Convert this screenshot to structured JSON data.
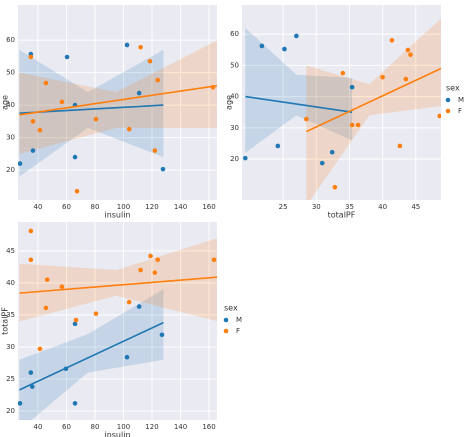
{
  "chart_data": [
    {
      "type": "scatter",
      "xlabel": "insulin",
      "ylabel": "age",
      "xlim": [
        26,
        165.6
      ],
      "ylim": [
        10.8,
        70.8
      ],
      "xticks": [
        40,
        60,
        80,
        100,
        120,
        140,
        160
      ],
      "yticks": [
        20,
        30,
        40,
        50,
        60
      ],
      "grid": true,
      "legend": false,
      "series": [
        {
          "name": "M",
          "color": "#1f77b4",
          "x": [
            27.4,
            35,
            36.5,
            60.4,
            66,
            66,
            102.5,
            111,
            127.7
          ],
          "values": [
            22,
            55.7,
            26,
            54.8,
            40,
            24,
            58.5,
            43.7,
            20.3
          ],
          "fit": {
            "x": [
              27,
              128
            ],
            "values": [
              37.5,
              40
            ]
          },
          "ci": {
            "x": [
              27,
              75,
              128
            ],
            "lower": [
              18,
              33,
              24
            ],
            "upper": [
              57,
              44,
              57
            ]
          }
        },
        {
          "name": "F",
          "color": "#ff7f0e",
          "x": [
            35,
            36.5,
            41.4,
            45.6,
            56.8,
            67.4,
            80.7,
            104,
            112,
            118.6,
            122,
            124,
            162.8
          ],
          "values": [
            54.8,
            35,
            32.3,
            46.8,
            41,
            13.5,
            35.7,
            32.6,
            57.8,
            53.5,
            26,
            47.7,
            45.5
          ],
          "fit": {
            "x": [
              27,
              166
            ],
            "values": [
              37,
              46
            ]
          },
          "ci": {
            "x": [
              27,
              95,
              166
            ],
            "lower": [
              25,
              33,
              33
            ],
            "upper": [
              50,
              44,
              60
            ]
          }
        }
      ]
    },
    {
      "type": "scatter",
      "xlabel": "totalPF",
      "ylabel": "age",
      "xlim": [
        18.8,
        48.8
      ],
      "ylim": [
        6.9,
        69.3
      ],
      "xticks": [
        25,
        30,
        35,
        40,
        45
      ],
      "yticks": [
        20,
        30,
        40,
        50,
        60
      ],
      "grid": true,
      "legend": true,
      "legend_title": "sex",
      "series": [
        {
          "name": "M",
          "color": "#1f77b4",
          "x": [
            19.3,
            21.8,
            25.2,
            27,
            24.2,
            30.9,
            32.4,
            35.4
          ],
          "values": [
            20.3,
            56.2,
            55.2,
            59.4,
            24.2,
            18.7,
            22.2,
            43
          ],
          "fit": {
            "x": [
              19.3,
              35.4
            ],
            "values": [
              40,
              35
            ]
          },
          "ci": {
            "x": [
              19.3,
              27,
              35.4
            ],
            "lower": [
              22,
              34,
              26
            ],
            "upper": [
              62,
              47,
              46
            ]
          }
        },
        {
          "name": "F",
          "color": "#ff7f0e",
          "x": [
            28.5,
            32.8,
            34,
            35.4,
            36.3,
            40,
            41.4,
            42.6,
            43.5,
            43.8,
            44.2,
            48.6
          ],
          "values": [
            32.8,
            11,
            47.5,
            30.9,
            30.9,
            46.2,
            58,
            24.2,
            45.6,
            54.9,
            53.4,
            33.8
          ],
          "fit": {
            "x": [
              28.5,
              48.8
            ],
            "values": [
              28.8,
              49
            ]
          },
          "ci": {
            "x": [
              28.5,
              38,
              48.8
            ],
            "lower": [
              5,
              34,
              37
            ],
            "upper": [
              50,
              44,
              65
            ]
          }
        }
      ]
    },
    {
      "type": "scatter",
      "xlabel": "insulin",
      "ylabel": "totalPF",
      "xlim": [
        26,
        165.6
      ],
      "ylim": [
        18.6,
        49.5
      ],
      "xticks": [
        40,
        60,
        80,
        100,
        120,
        140,
        160
      ],
      "yticks": [
        20,
        25,
        30,
        35,
        40,
        45
      ],
      "grid": true,
      "legend": true,
      "legend_title": "sex",
      "series": [
        {
          "name": "M",
          "color": "#1f77b4",
          "x": [
            27.4,
            35,
            36,
            59.6,
            66,
            66,
            102.5,
            111,
            127
          ],
          "values": [
            21.2,
            26,
            23.8,
            26.6,
            21.2,
            33.6,
            28.4,
            36.3,
            31.9
          ],
          "fit": {
            "x": [
              27,
              128
            ],
            "values": [
              23.3,
              33.8
            ]
          },
          "ci": {
            "x": [
              27,
              75,
              128
            ],
            "lower": [
              17,
              26,
              28
            ],
            "upper": [
              28,
              32,
              39
            ]
          }
        },
        {
          "name": "F",
          "color": "#ff7f0e",
          "x": [
            35,
            35,
            41.4,
            45.6,
            46.5,
            56.8,
            66.7,
            80.7,
            104,
            112,
            119,
            122,
            124,
            163.5
          ],
          "values": [
            48.1,
            43.6,
            29.7,
            36.1,
            40.5,
            39.4,
            34.2,
            35.2,
            37,
            42,
            44.2,
            41.6,
            43.6,
            43.6
          ],
          "fit": {
            "x": [
              27,
              166
            ],
            "values": [
              38.4,
              40.9
            ]
          },
          "ci": {
            "x": [
              27,
              95,
              166
            ],
            "lower": [
              34,
              38,
              34
            ],
            "upper": [
              43,
              42,
              47
            ]
          }
        }
      ]
    }
  ]
}
